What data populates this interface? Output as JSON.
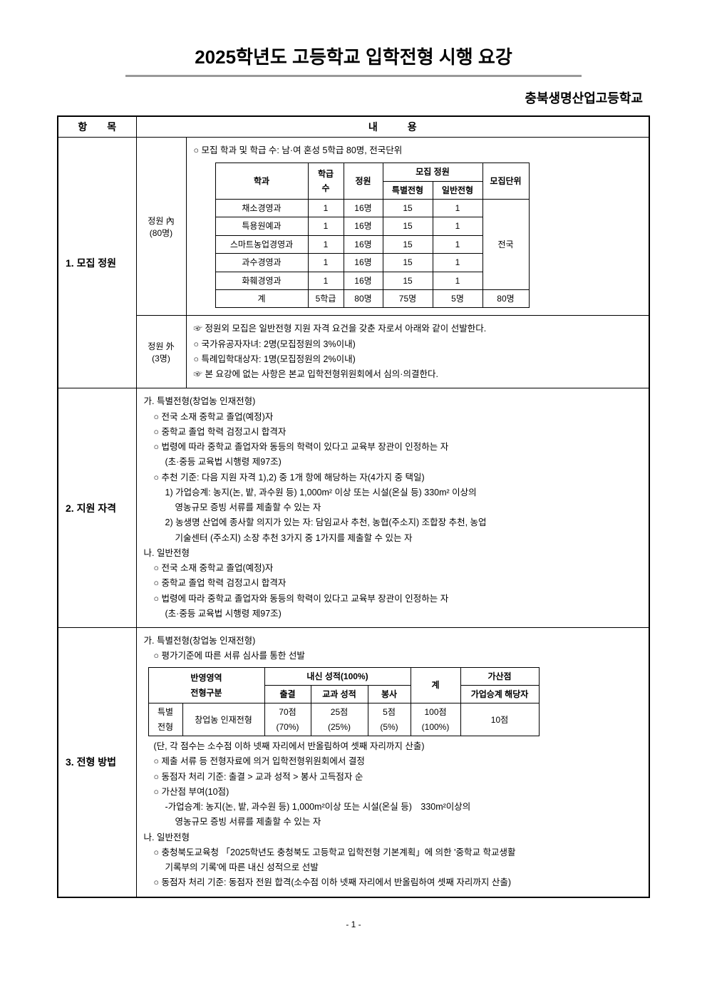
{
  "title": "2025학년도 고등학교 입학전형 시행 요강",
  "school_name": "충북생명산업고등학교",
  "header": {
    "col1": "항　　목",
    "col2": "내　　　용"
  },
  "section1": {
    "label": "1. 모집 정원",
    "sub1": {
      "label1": "정원 內",
      "label2": "(80명)",
      "intro": "○ 모집 학과 및 학급 수: 남·여 혼성 5학급 80명, 전국단위",
      "table": {
        "headers": {
          "dept": "학과",
          "classes": "학급수",
          "capacity": "정원",
          "quota": "모집 정원",
          "special": "특별전형",
          "general": "일반전형",
          "unit": "모집단위"
        },
        "rows": [
          {
            "dept": "채소경영과",
            "classes": "1",
            "capacity": "16명",
            "special": "15",
            "general": "1"
          },
          {
            "dept": "특용원예과",
            "classes": "1",
            "capacity": "16명",
            "special": "15",
            "general": "1"
          },
          {
            "dept": "스마트농업경영과",
            "classes": "1",
            "capacity": "16명",
            "special": "15",
            "general": "1"
          },
          {
            "dept": "과수경영과",
            "classes": "1",
            "capacity": "16명",
            "special": "15",
            "general": "1"
          },
          {
            "dept": "화훼경영과",
            "classes": "1",
            "capacity": "16명",
            "special": "15",
            "general": "1"
          }
        ],
        "total": {
          "dept": "계",
          "classes": "5학급",
          "capacity": "80명",
          "special": "75명",
          "general": "5명",
          "unit_total": "80명"
        },
        "unit": "전국"
      }
    },
    "sub2": {
      "label1": "정원 外",
      "label2": "(3명)",
      "line1": "☞ 정원외 모집은 일반전형 지원 자격 요건을 갖춘 자로서 아래와 같이 선발한다.",
      "line2": "○ 국가유공자자녀: 2명(모집정원의 3%이내)",
      "line3": "○ 특례입학대상자: 1명(모집정원의 2%이내)",
      "line4": "☞ 본 요강에 없는 사항은 본교 입학전형위원회에서 심의·의결한다."
    }
  },
  "section2": {
    "label": "2. 지원 자격",
    "lines": [
      "가. 특별전형(창업농 인재전형)",
      "○ 전국 소재 중학교 졸업(예정)자",
      "○ 중학교 졸업 학력 검정고시 합격자",
      "○ 법령에 따라 중학교 졸업자와 동등의 학력이 있다고 교육부 장관이 인정하는 자",
      "(초·중등 교육법 시행령 제97조)",
      "○ 추천 기준: 다음 지원 자격 1),2) 중 1개 항에 해당하는 자(4가지 중 택일)",
      "1) 가업승계: 농지(논, 밭, 과수원 등) 1,000m² 이상 또는 시설(온실 등) 330m² 이상의",
      "영농규모 증빙 서류를 제출할 수 있는 자",
      "2) 농생명 산업에 종사할 의지가 있는 자: 담임교사 추천, 농협(주소지) 조합장 추천, 농업",
      "기술센터 (주소지) 소장 추천 3가지 중 1가지를 제출할 수 있는 자",
      "나. 일반전형",
      "○ 전국 소재 중학교 졸업(예정)자",
      "○ 중학교 졸업 학력 검정고시 합격자",
      "○ 법령에 따라 중학교 졸업자와 동등의 학력이 있다고 교육부 장관이 인정하는 자",
      "(초·중등 교육법 시행령 제97조)"
    ]
  },
  "section3": {
    "label": "3. 전형 방법",
    "pre_lines": [
      "가. 특별전형(창업농 인재전형)",
      "○ 평가기준에 따른 서류 심사를 통한 선발"
    ],
    "table": {
      "h_area": "반영영역",
      "h_inner": "내신 성적(100%)",
      "h_total": "계",
      "h_bonus": "가산점",
      "h_type": "전형구분",
      "h_attend": "출결",
      "h_grade": "교과 성적",
      "h_vol": "봉사",
      "h_bonus2": "가업승계 해당자",
      "r_type1": "특별",
      "r_type2": "전형",
      "r_name": "창업농 인재전형",
      "r_attend1": "70점",
      "r_attend2": "(70%)",
      "r_grade1": "25점",
      "r_grade2": "(25%)",
      "r_vol1": "5점",
      "r_vol2": "(5%)",
      "r_total1": "100점",
      "r_total2": "(100%)",
      "r_bonus": "10점"
    },
    "post_lines": [
      "(단, 각 점수는 소수점 이하 넷째 자리에서 반올림하여 셋째 자리까지 산출)",
      "○ 제출 서류 등 전형자료에 의거 입학전형위원회에서 결정",
      "○ 동점자 처리 기준: 출결 > 교과 성적 > 봉사 고득점자 순",
      "○ 가산점 부여(10점)",
      "-가업승계: 농지(논, 밭, 과수원 등) 1,000m²이상 또는 시설(온실 등)　330m²이상의",
      "영농규모 증빙 서류를 제출할 수 있는 자",
      "나. 일반전형",
      "○ 충청북도교육청 「2025학년도 충청북도 고등학교 입학전형 기본계획」에 의한 '중학교 학교생활",
      "기록부의 기록'에 따른 내신 성적으로 선발",
      "○ 동점자 처리 기준: 동점자 전원 합격(소수점 이하 넷째 자리에서 반올림하여 셋째 자리까지 산출)"
    ]
  },
  "page_number": "- 1 -"
}
